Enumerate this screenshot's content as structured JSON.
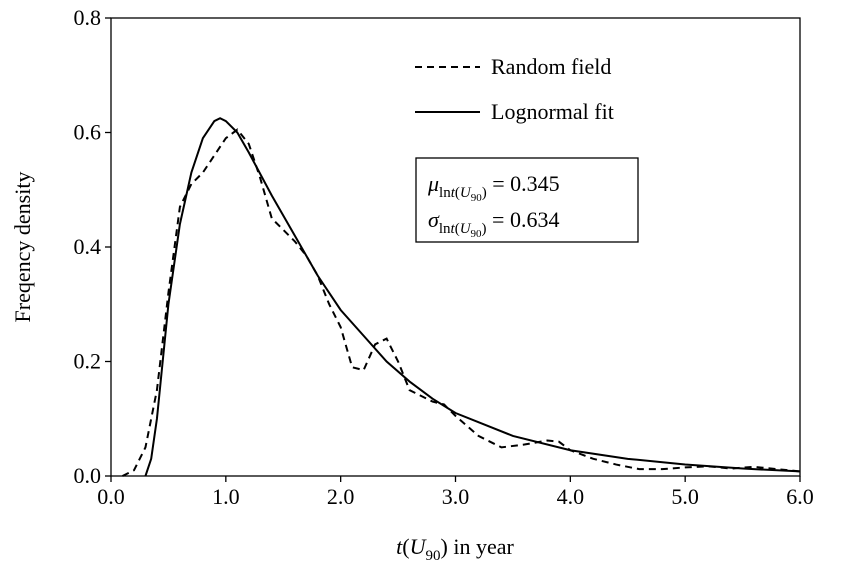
{
  "chart_data": {
    "type": "line",
    "y_label": "Freqency density",
    "x_label_parts": [
      "t",
      "(",
      "U",
      "90",
      ") in year"
    ],
    "xlim": [
      0,
      6
    ],
    "ylim": [
      0,
      0.8
    ],
    "xticks": [
      {
        "value": 0,
        "label": "0.0"
      },
      {
        "value": 1,
        "label": "1.0"
      },
      {
        "value": 2,
        "label": "2.0"
      },
      {
        "value": 3,
        "label": "3.0"
      },
      {
        "value": 4,
        "label": "4.0"
      },
      {
        "value": 5,
        "label": "5.0"
      },
      {
        "value": 6,
        "label": "6.0"
      }
    ],
    "yticks": [
      {
        "value": 0,
        "label": "0.0"
      },
      0.2,
      0.4,
      0.6,
      0.8
    ],
    "legend": "top-right",
    "series": [
      {
        "name": "Random field",
        "color": "#000000",
        "dash": "dashed",
        "x": [
          0.1,
          0.2,
          0.3,
          0.4,
          0.5,
          0.6,
          0.7,
          0.8,
          0.9,
          1.0,
          1.1,
          1.2,
          1.3,
          1.4,
          1.5,
          1.6,
          1.7,
          1.8,
          1.9,
          2.0,
          2.1,
          2.2,
          2.3,
          2.4,
          2.5,
          2.6,
          2.8,
          2.9,
          3.0,
          3.2,
          3.4,
          3.6,
          3.8,
          3.9,
          4.0,
          4.2,
          4.4,
          4.6,
          4.8,
          5.0,
          5.2,
          5.4,
          5.6,
          5.8,
          6.0
        ],
        "values": [
          0,
          0.01,
          0.05,
          0.15,
          0.32,
          0.47,
          0.51,
          0.53,
          0.56,
          0.59,
          0.605,
          0.58,
          0.52,
          0.45,
          0.43,
          0.41,
          0.385,
          0.35,
          0.3,
          0.26,
          0.19,
          0.185,
          0.23,
          0.24,
          0.2,
          0.15,
          0.13,
          0.125,
          0.105,
          0.07,
          0.05,
          0.055,
          0.062,
          0.06,
          0.045,
          0.03,
          0.02,
          0.012,
          0.012,
          0.015,
          0.017,
          0.013,
          0.016,
          0.012,
          0.008
        ]
      },
      {
        "name": "Lognormal fit",
        "color": "#000000",
        "dash": "solid",
        "x": [
          0.3,
          0.35,
          0.4,
          0.45,
          0.5,
          0.6,
          0.7,
          0.8,
          0.9,
          0.95,
          1.0,
          1.1,
          1.2,
          1.4,
          1.6,
          1.8,
          2.0,
          2.2,
          2.4,
          2.6,
          2.8,
          3.0,
          3.5,
          4.0,
          4.5,
          5.0,
          5.5,
          6.0
        ],
        "values": [
          0,
          0.03,
          0.1,
          0.2,
          0.3,
          0.44,
          0.53,
          0.59,
          0.62,
          0.625,
          0.62,
          0.6,
          0.565,
          0.49,
          0.42,
          0.35,
          0.29,
          0.245,
          0.2,
          0.165,
          0.135,
          0.11,
          0.07,
          0.045,
          0.03,
          0.02,
          0.013,
          0.008
        ]
      }
    ],
    "annotation_lines": [
      [
        "μ",
        "ln",
        "t",
        "(",
        "U",
        "90",
        ")",
        " = 0.345"
      ],
      [
        "σ",
        "ln",
        "t",
        "(",
        "U",
        "90",
        ")",
        " = 0.634"
      ]
    ]
  }
}
